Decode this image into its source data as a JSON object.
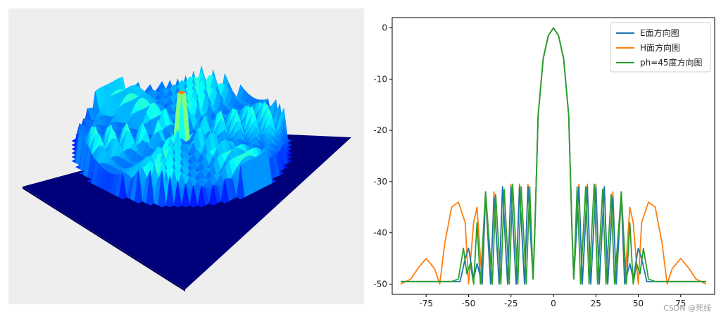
{
  "chart_data": [
    {
      "type": "surface",
      "title": "",
      "colormap": "jet",
      "background": "#eeeeee",
      "description_values": {
        "peak_level": 1.0,
        "sidelobe_level": 0.45
      }
    },
    {
      "type": "line",
      "title": "",
      "xlabel": "",
      "ylabel": "",
      "xlim": [
        -95,
        95
      ],
      "ylim": [
        -52,
        2
      ],
      "x_ticks": [
        -75,
        -50,
        -25,
        0,
        25,
        50,
        75
      ],
      "y_ticks": [
        0,
        -10,
        -20,
        -30,
        -40,
        -50
      ],
      "legend_position": "top-right",
      "grid": false,
      "series": [
        {
          "name": "E面方向图",
          "color": "#1f77b4",
          "x": [
            -90,
            -60,
            -55,
            -52,
            -50,
            -47,
            -45,
            -42,
            -40,
            -37,
            -35,
            -32,
            -30,
            -27,
            -25,
            -22,
            -20,
            -17,
            -15,
            -12,
            -11,
            -9,
            -6,
            -3,
            0,
            3,
            6,
            9,
            11,
            12,
            15,
            17,
            20,
            22,
            25,
            27,
            30,
            32,
            35,
            37,
            40,
            42,
            45,
            47,
            50,
            52,
            55,
            60,
            90
          ],
          "y": [
            -49.5,
            -49.5,
            -49.5,
            -45,
            -43,
            -49,
            -46,
            -50,
            -32,
            -50,
            -33,
            -50,
            -31,
            -50,
            -31,
            -50,
            -31,
            -50,
            -31,
            -49,
            -40,
            -17,
            -6,
            -1.5,
            0,
            -1.5,
            -6,
            -17,
            -40,
            -49,
            -31,
            -50,
            -31,
            -50,
            -31,
            -50,
            -31,
            -50,
            -33,
            -50,
            -32,
            -50,
            -46,
            -49,
            -43,
            -45,
            -49.5,
            -49.5,
            -49.5
          ]
        },
        {
          "name": "H面方向图",
          "color": "#ff7f0e",
          "x": [
            -90,
            -84,
            -80,
            -75,
            -70,
            -67,
            -64,
            -60,
            -56,
            -52,
            -50,
            -47,
            -45,
            -42,
            -40,
            -37,
            -35,
            -32,
            -30,
            -27,
            -25,
            -22,
            -20,
            -17,
            -15,
            -12,
            -11,
            -9,
            -6,
            -3,
            0,
            3,
            6,
            9,
            11,
            12,
            15,
            17,
            20,
            22,
            25,
            27,
            30,
            32,
            35,
            37,
            40,
            42,
            45,
            47,
            50,
            52,
            56,
            60,
            64,
            67,
            70,
            75,
            80,
            84,
            90
          ],
          "y": [
            -50,
            -49,
            -47,
            -45,
            -47,
            -50,
            -42,
            -35,
            -34,
            -38,
            -50,
            -38,
            -35,
            -50,
            -33,
            -50,
            -32,
            -50,
            -31,
            -50,
            -30.5,
            -50,
            -30.5,
            -50,
            -30.5,
            -49,
            -40,
            -17,
            -6,
            -1.5,
            0,
            -1.5,
            -6,
            -17,
            -40,
            -49,
            -30.5,
            -50,
            -30.5,
            -50,
            -30.5,
            -50,
            -31,
            -50,
            -32,
            -50,
            -33,
            -50,
            -35,
            -38,
            -50,
            -38,
            -34,
            -35,
            -42,
            -50,
            -47,
            -45,
            -47,
            -49,
            -50
          ]
        },
        {
          "name": "ph=45度方向图",
          "color": "#2ca02c",
          "x": [
            -90,
            -60,
            -56,
            -53,
            -51,
            -49,
            -47,
            -45,
            -43,
            -40,
            -36,
            -34,
            -31,
            -29,
            -26,
            -24,
            -21,
            -19,
            -16,
            -14,
            -12,
            -11,
            -9,
            -6,
            -3,
            0,
            3,
            6,
            9,
            11,
            12,
            14,
            16,
            19,
            21,
            24,
            26,
            29,
            31,
            34,
            36,
            40,
            43,
            45,
            47,
            49,
            51,
            53,
            56,
            60,
            90
          ],
          "y": [
            -49.5,
            -49.5,
            -49,
            -43,
            -48,
            -46,
            -50,
            -38,
            -50,
            -32,
            -50,
            -32.5,
            -50,
            -31.5,
            -50,
            -30.5,
            -50,
            -31,
            -50,
            -31,
            -49,
            -40,
            -17,
            -6,
            -1.5,
            0,
            -1.5,
            -6,
            -17,
            -40,
            -49,
            -31,
            -50,
            -31,
            -50,
            -30.5,
            -50,
            -31.5,
            -50,
            -32.5,
            -50,
            -32,
            -50,
            -38,
            -50,
            -46,
            -48,
            -43,
            -49,
            -49.5,
            -49.5
          ]
        }
      ]
    }
  ],
  "watermark": "CSDN @死线"
}
